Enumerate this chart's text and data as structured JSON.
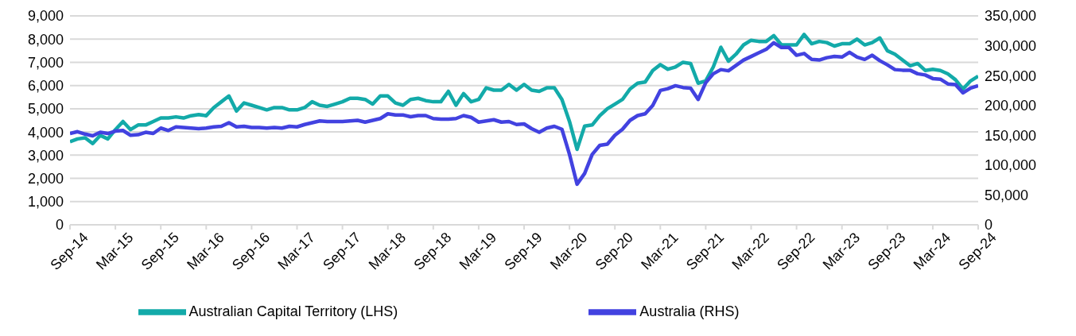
{
  "chart_data": {
    "type": "line",
    "categories": [
      "Sep-14",
      null,
      null,
      null,
      null,
      null,
      "Mar-15",
      null,
      null,
      null,
      null,
      null,
      "Sep-15",
      null,
      null,
      null,
      null,
      null,
      "Mar-16",
      null,
      null,
      null,
      null,
      null,
      "Sep-16",
      null,
      null,
      null,
      null,
      null,
      "Mar-17",
      null,
      null,
      null,
      null,
      null,
      "Sep-17",
      null,
      null,
      null,
      null,
      null,
      "Mar-18",
      null,
      null,
      null,
      null,
      null,
      "Sep-18",
      null,
      null,
      null,
      null,
      null,
      "Mar-19",
      null,
      null,
      null,
      null,
      null,
      "Sep-19",
      null,
      null,
      null,
      null,
      null,
      "Mar-20",
      null,
      null,
      null,
      null,
      null,
      "Sep-20",
      null,
      null,
      null,
      null,
      null,
      "Mar-21",
      null,
      null,
      null,
      null,
      null,
      "Sep-21",
      null,
      null,
      null,
      null,
      null,
      "Mar-22",
      null,
      null,
      null,
      null,
      null,
      "Sep-22",
      null,
      null,
      null,
      null,
      null,
      "Mar-23",
      null,
      null,
      null,
      null,
      null,
      "Sep-23",
      null,
      null,
      null,
      null,
      null,
      "Mar-24",
      null,
      null,
      null,
      null,
      null,
      "Sep-24"
    ],
    "series": [
      {
        "name": "Australian Capital Territory (LHS)",
        "color": "#13aaa9",
        "values": [
          3580,
          3700,
          3750,
          3500,
          3850,
          3700,
          4100,
          4450,
          4100,
          4300,
          4300,
          4450,
          4600,
          4600,
          4650,
          4600,
          4700,
          4750,
          4700,
          5050,
          5300,
          5550,
          4900,
          5250,
          5150,
          5050,
          4950,
          5050,
          5050,
          4950,
          4950,
          5050,
          5300,
          5150,
          5100,
          5200,
          5300,
          5450,
          5450,
          5400,
          5200,
          5550,
          5550,
          5250,
          5150,
          5400,
          5450,
          5350,
          5300,
          5300,
          5750,
          5150,
          5650,
          5300,
          5400,
          5900,
          5800,
          5800,
          6050,
          5800,
          6050,
          5800,
          5750,
          5900,
          5900,
          5400,
          4450,
          3250,
          4250,
          4300,
          4700,
          5000,
          5200,
          5400,
          5850,
          6100,
          6150,
          6650,
          6900,
          6700,
          6800,
          7000,
          6950,
          6100,
          6200,
          6800,
          7650,
          7050,
          7350,
          7750,
          7950,
          7900,
          7900,
          8150,
          7750,
          7750,
          7750,
          8200,
          7800,
          7900,
          7850,
          7700,
          7800,
          7800,
          8000,
          7750,
          7850,
          8050,
          7500,
          7350,
          7100,
          6850,
          6950,
          6650,
          6700,
          6650,
          6500,
          6250,
          5850,
          6200,
          6400
        ]
      },
      {
        "name": "Australia (RHS)",
        "color": "#4242e0",
        "axis": "y2",
        "values": [
          153000,
          156000,
          152000,
          149000,
          155000,
          153000,
          157000,
          158000,
          150000,
          151000,
          155000,
          153000,
          162000,
          158000,
          164000,
          163000,
          162000,
          161000,
          162000,
          164000,
          165000,
          171000,
          164000,
          165000,
          163000,
          163000,
          162000,
          163000,
          162000,
          165000,
          164000,
          168000,
          171000,
          174000,
          173000,
          173000,
          173000,
          174000,
          175000,
          172000,
          175000,
          178000,
          186000,
          184000,
          184000,
          181000,
          183000,
          183000,
          178000,
          177000,
          177000,
          178000,
          183000,
          180000,
          172000,
          174000,
          176000,
          172000,
          173000,
          168000,
          169000,
          161000,
          155000,
          162000,
          165000,
          160000,
          118000,
          68000,
          86000,
          118000,
          133000,
          135000,
          150000,
          160000,
          175000,
          183000,
          186000,
          200000,
          225000,
          228000,
          233000,
          230000,
          229000,
          210000,
          238000,
          253000,
          260000,
          258000,
          267000,
          276000,
          282000,
          288000,
          294000,
          305000,
          297000,
          297000,
          284000,
          287000,
          277000,
          276000,
          280000,
          282000,
          281000,
          289000,
          281000,
          277000,
          284000,
          275000,
          268000,
          260000,
          259000,
          259000,
          253000,
          251000,
          245000,
          244000,
          236000,
          235000,
          221000,
          229000,
          233000
        ]
      }
    ],
    "ylim": [
      0,
      9000
    ],
    "yticks": [
      0,
      {
        "value": 1000,
        "label": "1,000"
      },
      {
        "value": 2000,
        "label": "2,000"
      },
      {
        "value": 3000,
        "label": "3,000"
      },
      {
        "value": 4000,
        "label": "4,000"
      },
      {
        "value": 5000,
        "label": "5,000"
      },
      {
        "value": 6000,
        "label": "6,000"
      },
      {
        "value": 7000,
        "label": "7,000"
      },
      {
        "value": 8000,
        "label": "8,000"
      },
      {
        "value": 9000,
        "label": "9,000"
      }
    ],
    "y2lim": [
      0,
      350000
    ],
    "y2ticks": [
      0,
      {
        "value": 50000,
        "label": "50,000"
      },
      {
        "value": 100000,
        "label": "100,000"
      },
      {
        "value": 150000,
        "label": "150,000"
      },
      {
        "value": 200000,
        "label": "200,000"
      },
      {
        "value": 250000,
        "label": "250,000"
      },
      {
        "value": 300000,
        "label": "300,000"
      },
      {
        "value": 350000,
        "label": "350,000"
      }
    ],
    "grid": "y",
    "legend": "bottom",
    "marker": "none",
    "line_style": "solid"
  }
}
